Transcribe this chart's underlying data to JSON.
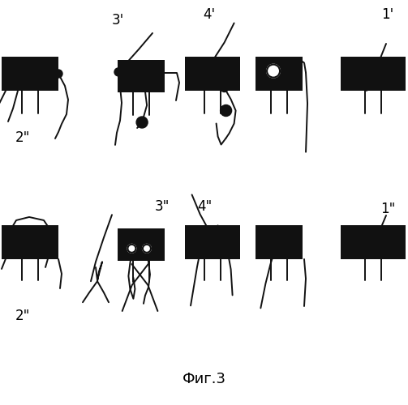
{
  "title": "Фиг.3",
  "background_color": "#ffffff",
  "dark_color": "#111111",
  "text_color": "#000000",
  "fig_width": 5.03,
  "fig_height": 5.0,
  "dpi": 100,
  "lw": 1.4
}
